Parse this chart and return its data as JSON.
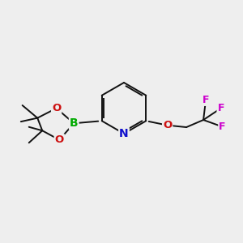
{
  "bg_color": "#eeeeee",
  "bond_color": "#111111",
  "atom_colors": {
    "N": "#1010cc",
    "O": "#cc1010",
    "B": "#00aa00",
    "F": "#cc00cc",
    "C": "#111111"
  },
  "bond_lw": 1.4,
  "figsize": [
    3.0,
    3.0
  ],
  "dpi": 100
}
